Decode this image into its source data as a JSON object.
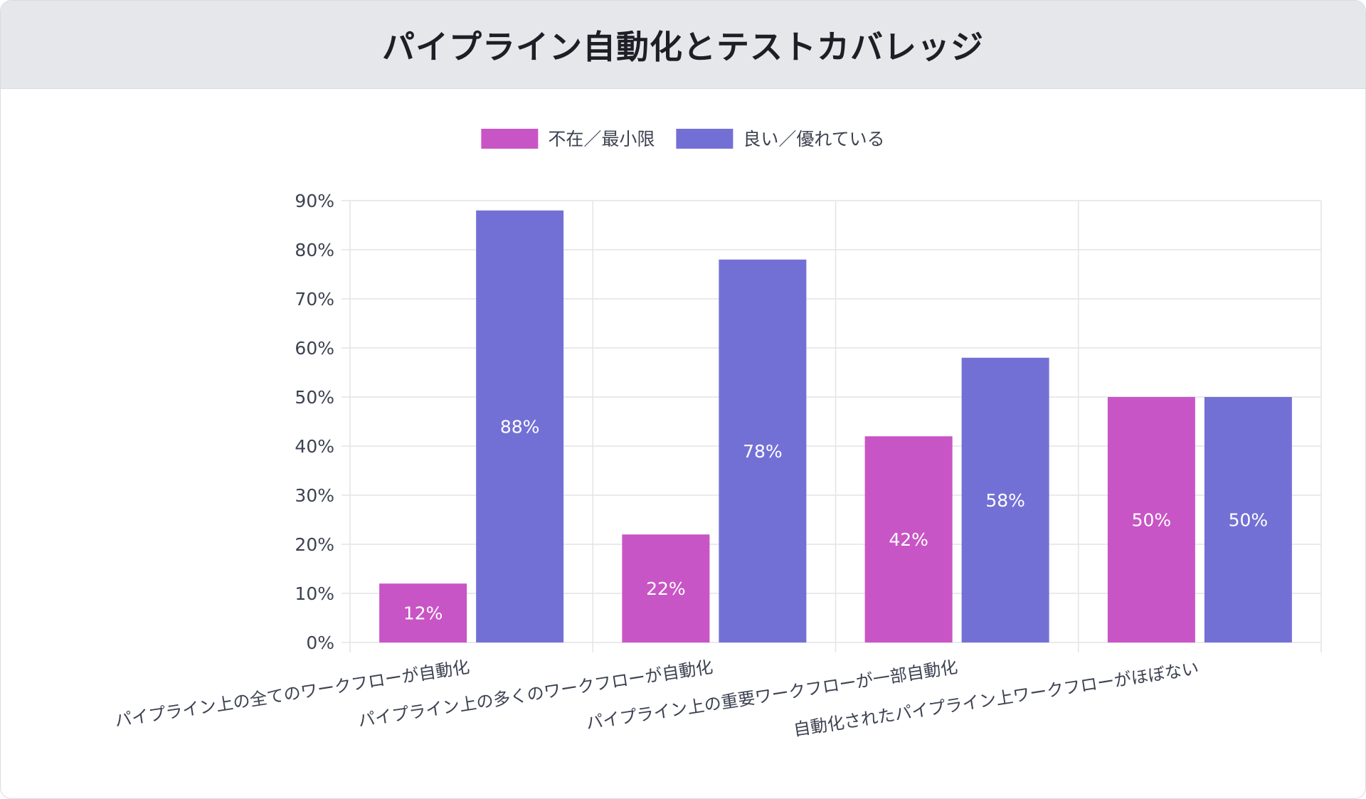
{
  "title": "パイプライン自動化とテストカバレッジ",
  "chart_data": {
    "type": "bar",
    "title": "パイプライン自動化とテストカバレッジ",
    "categories": [
      "パイプライン上の全てのワークフローが自動化",
      "パイプライン上の多くのワークフローが自動化",
      "パイプライン上の重要ワークフローが一部自動化",
      "自動化されたパイプライン上ワークフローがほぼない"
    ],
    "series": [
      {
        "name": "不在／最小限",
        "color": "#c855c5",
        "values": [
          12,
          22,
          42,
          50
        ]
      },
      {
        "name": "良い／優れている",
        "color": "#7370d5",
        "values": [
          88,
          78,
          58,
          50
        ]
      }
    ],
    "ylim": [
      0,
      90
    ],
    "yticks": [
      "0%",
      "10%",
      "20%",
      "30%",
      "40%",
      "50%",
      "60%",
      "70%",
      "80%",
      "90%"
    ],
    "value_suffix": "%",
    "xlabel": "",
    "ylabel": "",
    "legend_position": "top-center",
    "grid": true
  }
}
